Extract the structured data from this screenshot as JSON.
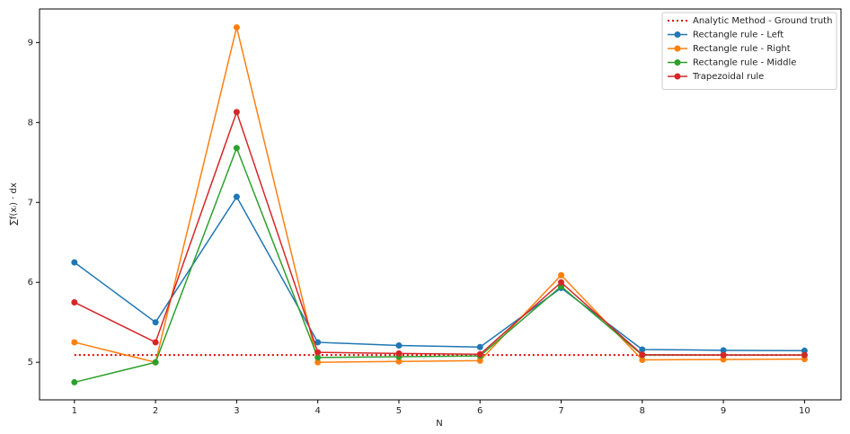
{
  "chart_data": {
    "type": "line",
    "x": [
      1,
      2,
      3,
      4,
      5,
      6,
      7,
      8,
      9,
      10
    ],
    "xlabel": "N",
    "ylabel": "∑f(xᵢ) · dx",
    "xlim": [
      0.57,
      10.45
    ],
    "xticks": [
      1,
      2,
      3,
      4,
      5,
      6,
      7,
      8,
      9,
      10
    ],
    "ylim": [
      4.53,
      9.42
    ],
    "yticks": [
      5,
      6,
      7,
      8,
      9
    ],
    "legend": "upper right",
    "series": [
      {
        "name": "Analytic Method - Ground truth",
        "color": "#e00000",
        "linestyle": "dotted",
        "marker": "none",
        "values": [
          5.09,
          5.09,
          5.09,
          5.09,
          5.09,
          5.09,
          5.09,
          5.09,
          5.09,
          5.09
        ]
      },
      {
        "name": "Rectangle rule - Left",
        "color": "#1f77b4",
        "linestyle": "solid",
        "marker": "circle",
        "values": [
          6.25,
          5.5,
          7.07,
          5.25,
          5.21,
          5.19,
          5.93,
          5.16,
          5.15,
          5.145
        ]
      },
      {
        "name": "Rectangle rule - Right",
        "color": "#ff7f0e",
        "linestyle": "solid",
        "marker": "circle",
        "values": [
          5.25,
          5.0,
          9.19,
          5.0,
          5.01,
          5.02,
          6.09,
          5.03,
          5.035,
          5.04
        ]
      },
      {
        "name": "Rectangle rule - Middle",
        "color": "#2ca02c",
        "linestyle": "solid",
        "marker": "circle",
        "values": [
          4.75,
          5.0,
          7.68,
          5.06,
          5.07,
          5.08,
          5.95,
          5.09,
          5.09,
          5.09
        ]
      },
      {
        "name": "Trapezoidal rule",
        "color": "#d62728",
        "linestyle": "solid",
        "marker": "circle",
        "values": [
          5.75,
          5.25,
          8.13,
          5.125,
          5.11,
          5.1,
          6.0,
          5.095,
          5.09,
          5.09
        ]
      }
    ]
  }
}
